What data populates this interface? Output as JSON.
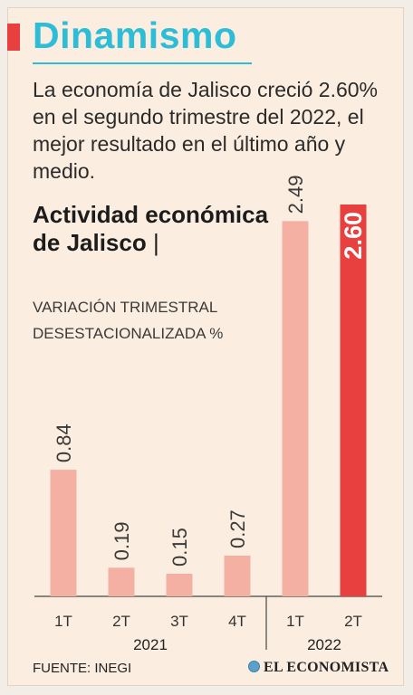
{
  "header": {
    "title": "Dinamismo",
    "summary": "La economía de Jalisco creció 2.60% en el segundo trimestre del 2022, el mejor resultado en el último año y medio."
  },
  "chart_heading": {
    "title": "Actividad económica de Jalisco",
    "separator": "|",
    "subtitle": "Variación trimestral desestacionalizada %"
  },
  "chart_data": {
    "type": "bar",
    "title": "Actividad económica de Jalisco",
    "subtitle": "VARIACIÓN TRIMESTRAL DESESTACIONALIZADA %",
    "categories": [
      "1T",
      "2T",
      "3T",
      "4T",
      "1T",
      "2T"
    ],
    "groups": [
      {
        "label": "2021",
        "categories": [
          "1T",
          "2T",
          "3T",
          "4T"
        ]
      },
      {
        "label": "2022",
        "categories": [
          "1T",
          "2T"
        ]
      }
    ],
    "values": [
      0.84,
      0.19,
      0.15,
      0.27,
      2.49,
      2.6
    ],
    "value_labels": [
      "0.84",
      "0.19",
      "0.15",
      "0.27",
      "2.49",
      "2.60"
    ],
    "highlight_index": 5,
    "ylim": [
      0,
      2.6
    ],
    "colors": {
      "bar": "#f4b0a2",
      "highlight": "#e8403f",
      "label": "#3a3a3a",
      "highlight_label": "#ffffff",
      "axis": "#444444"
    },
    "grid": false,
    "legend": "none"
  },
  "footer": {
    "source": "FUENTE: INEGI",
    "brand": "EL ECONOMISTA",
    "brand_icon": "globe-icon"
  }
}
